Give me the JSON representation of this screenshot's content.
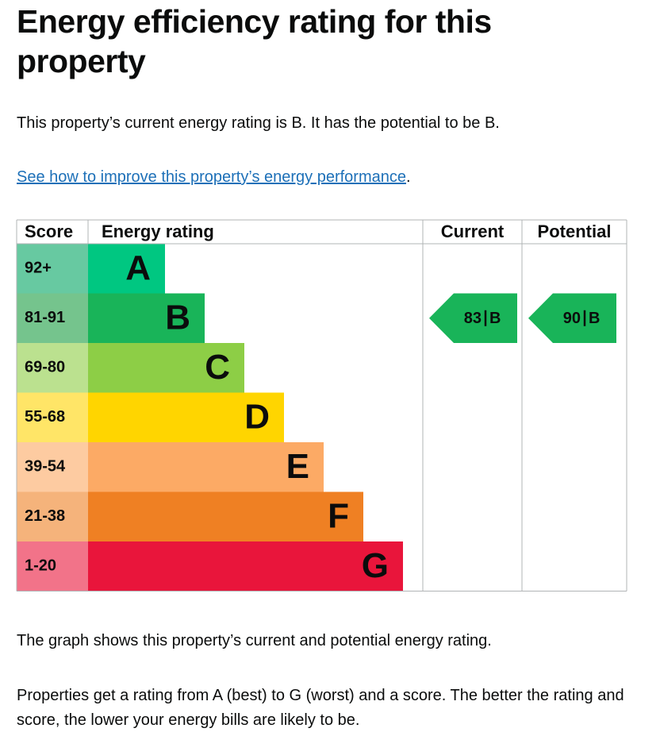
{
  "header": {
    "title": "Energy efficiency rating for this property"
  },
  "summary": "This property’s current energy rating is B. It has the potential to be B.",
  "link": {
    "text": "See how to improve this property’s energy performance",
    "suffix": "."
  },
  "table": {
    "headers": [
      "Score",
      "Energy rating",
      "Current",
      "Potential"
    ],
    "bands": [
      {
        "score": "92+",
        "letter": "A",
        "color": "#00c781",
        "score_color": "#67c9a1"
      },
      {
        "score": "81-91",
        "letter": "B",
        "color": "#19b459",
        "score_color": "#75c48d"
      },
      {
        "score": "69-80",
        "letter": "C",
        "color": "#8dce46",
        "score_color": "#bbe18f"
      },
      {
        "score": "55-68",
        "letter": "D",
        "color": "#ffd500",
        "score_color": "#ffe567"
      },
      {
        "score": "39-54",
        "letter": "E",
        "color": "#fcaa65",
        "score_color": "#fdcba1"
      },
      {
        "score": "21-38",
        "letter": "F",
        "color": "#ef8023",
        "score_color": "#f5b37b"
      },
      {
        "score": "1-20",
        "letter": "G",
        "color": "#e9153b",
        "score_color": "#f27389"
      }
    ],
    "current": {
      "score": "83",
      "band": "B"
    },
    "potential": {
      "score": "90",
      "band": "B"
    }
  },
  "notes": [
    "The graph shows this property’s current and potential energy rating.",
    "Properties get a rating from A (best) to G (worst) and a score. The better the rating and score, the lower your energy bills are likely to be."
  ]
}
